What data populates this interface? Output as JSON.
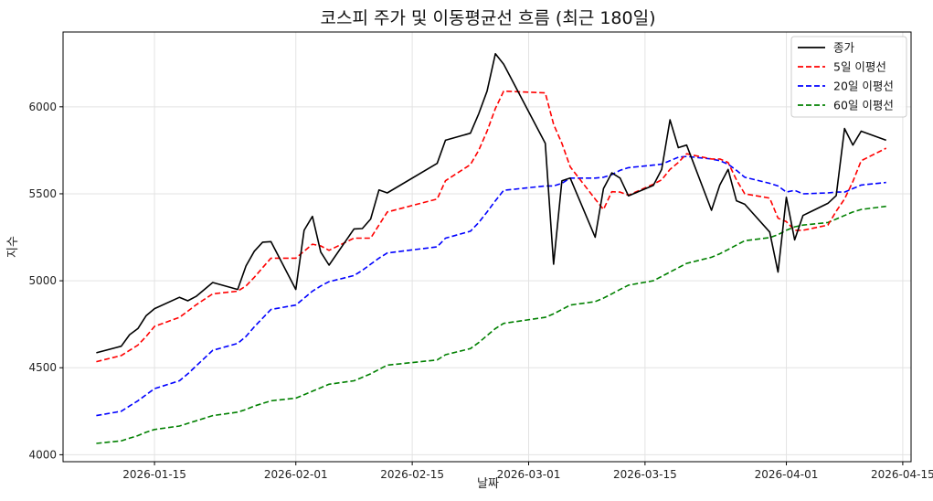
{
  "chart_data": {
    "type": "line",
    "title": "코스피 주가 및 이동평균선 흐름 (최근 180일)",
    "xlabel": "날짜",
    "ylabel": "지수",
    "xlim": [
      "2026-01-04",
      "2026-04-16"
    ],
    "ylim": [
      3960,
      6430
    ],
    "x_ticks": [
      "2026-01-15",
      "2026-02-01",
      "2026-02-15",
      "2026-03-01",
      "2026-03-15",
      "2026-04-01",
      "2026-04-15"
    ],
    "y_ticks": [
      4000,
      4500,
      5000,
      5500,
      6000
    ],
    "grid": true,
    "legend_position": "top-right",
    "series": [
      {
        "name": "종가",
        "color": "#000000",
        "dash": "solid",
        "points": [
          [
            "2026-01-08",
            4586
          ],
          [
            "2026-01-11",
            4624
          ],
          [
            "2026-01-12",
            4690
          ],
          [
            "2026-01-13",
            4725
          ],
          [
            "2026-01-14",
            4800
          ],
          [
            "2026-01-15",
            4840
          ],
          [
            "2026-01-18",
            4905
          ],
          [
            "2026-01-19",
            4885
          ],
          [
            "2026-01-20",
            4910
          ],
          [
            "2026-01-22",
            4990
          ],
          [
            "2026-01-25",
            4950
          ],
          [
            "2026-01-26",
            5085
          ],
          [
            "2026-01-27",
            5170
          ],
          [
            "2026-01-28",
            5222
          ],
          [
            "2026-01-29",
            5225
          ],
          [
            "2026-02-01",
            4950
          ],
          [
            "2026-02-02",
            5290
          ],
          [
            "2026-02-03",
            5370
          ],
          [
            "2026-02-04",
            5165
          ],
          [
            "2026-02-05",
            5090
          ],
          [
            "2026-02-08",
            5298
          ],
          [
            "2026-02-09",
            5300
          ],
          [
            "2026-02-10",
            5355
          ],
          [
            "2026-02-11",
            5522
          ],
          [
            "2026-02-12",
            5505
          ],
          [
            "2026-02-18",
            5675
          ],
          [
            "2026-02-19",
            5808
          ],
          [
            "2026-02-22",
            5848
          ],
          [
            "2026-02-23",
            5960
          ],
          [
            "2026-02-24",
            6090
          ],
          [
            "2026-02-25",
            6305
          ],
          [
            "2026-02-26",
            6245
          ],
          [
            "2026-03-03",
            5790
          ],
          [
            "2026-03-04",
            5095
          ],
          [
            "2026-03-05",
            5575
          ],
          [
            "2026-03-06",
            5590
          ],
          [
            "2026-03-09",
            5250
          ],
          [
            "2026-03-10",
            5530
          ],
          [
            "2026-03-11",
            5620
          ],
          [
            "2026-03-12",
            5590
          ],
          [
            "2026-03-13",
            5488
          ],
          [
            "2026-03-16",
            5548
          ],
          [
            "2026-03-17",
            5640
          ],
          [
            "2026-03-18",
            5925
          ],
          [
            "2026-03-19",
            5765
          ],
          [
            "2026-03-20",
            5780
          ],
          [
            "2026-03-23",
            5405
          ],
          [
            "2026-03-24",
            5550
          ],
          [
            "2026-03-25",
            5640
          ],
          [
            "2026-03-26",
            5460
          ],
          [
            "2026-03-27",
            5440
          ],
          [
            "2026-03-30",
            5280
          ],
          [
            "2026-03-31",
            5050
          ],
          [
            "2026-04-01",
            5480
          ],
          [
            "2026-04-02",
            5235
          ],
          [
            "2026-04-03",
            5375
          ],
          [
            "2026-04-06",
            5445
          ],
          [
            "2026-04-07",
            5490
          ],
          [
            "2026-04-08",
            5875
          ],
          [
            "2026-04-09",
            5780
          ],
          [
            "2026-04-10",
            5860
          ],
          [
            "2026-04-13",
            5808
          ]
        ]
      },
      {
        "name": "5일 이평선",
        "color": "#ff0000",
        "dash": "dashed",
        "points": [
          [
            "2026-01-08",
            4535
          ],
          [
            "2026-01-11",
            4570
          ],
          [
            "2026-01-12",
            4600
          ],
          [
            "2026-01-13",
            4630
          ],
          [
            "2026-01-14",
            4680
          ],
          [
            "2026-01-15",
            4738
          ],
          [
            "2026-01-18",
            4790
          ],
          [
            "2026-01-19",
            4825
          ],
          [
            "2026-01-20",
            4862
          ],
          [
            "2026-01-22",
            4925
          ],
          [
            "2026-01-25",
            4940
          ],
          [
            "2026-01-26",
            4970
          ],
          [
            "2026-01-27",
            5020
          ],
          [
            "2026-01-28",
            5075
          ],
          [
            "2026-01-29",
            5130
          ],
          [
            "2026-02-01",
            5130
          ],
          [
            "2026-02-02",
            5170
          ],
          [
            "2026-02-03",
            5210
          ],
          [
            "2026-02-04",
            5200
          ],
          [
            "2026-02-05",
            5175
          ],
          [
            "2026-02-08",
            5245
          ],
          [
            "2026-02-09",
            5245
          ],
          [
            "2026-02-10",
            5245
          ],
          [
            "2026-02-11",
            5320
          ],
          [
            "2026-02-12",
            5395
          ],
          [
            "2026-02-18",
            5470
          ],
          [
            "2026-02-19",
            5575
          ],
          [
            "2026-02-22",
            5668
          ],
          [
            "2026-02-23",
            5750
          ],
          [
            "2026-02-24",
            5860
          ],
          [
            "2026-02-25",
            5990
          ],
          [
            "2026-02-26",
            6090
          ],
          [
            "2026-03-03",
            6080
          ],
          [
            "2026-03-04",
            5900
          ],
          [
            "2026-03-05",
            5790
          ],
          [
            "2026-03-06",
            5655
          ],
          [
            "2026-03-09",
            5470
          ],
          [
            "2026-03-10",
            5410
          ],
          [
            "2026-03-11",
            5512
          ],
          [
            "2026-03-12",
            5510
          ],
          [
            "2026-03-13",
            5492
          ],
          [
            "2026-03-16",
            5555
          ],
          [
            "2026-03-17",
            5580
          ],
          [
            "2026-03-18",
            5640
          ],
          [
            "2026-03-19",
            5680
          ],
          [
            "2026-03-20",
            5730
          ],
          [
            "2026-03-23",
            5700
          ],
          [
            "2026-03-24",
            5700
          ],
          [
            "2026-03-25",
            5680
          ],
          [
            "2026-03-26",
            5580
          ],
          [
            "2026-03-27",
            5500
          ],
          [
            "2026-03-30",
            5475
          ],
          [
            "2026-03-31",
            5360
          ],
          [
            "2026-04-01",
            5340
          ],
          [
            "2026-04-02",
            5290
          ],
          [
            "2026-04-03",
            5290
          ],
          [
            "2026-04-06",
            5320
          ],
          [
            "2026-04-07",
            5400
          ],
          [
            "2026-04-08",
            5470
          ],
          [
            "2026-04-09",
            5570
          ],
          [
            "2026-04-10",
            5690
          ],
          [
            "2026-04-13",
            5762
          ]
        ]
      },
      {
        "name": "20일 이평선",
        "color": "#0000ff",
        "dash": "dashed",
        "points": [
          [
            "2026-01-08",
            4225
          ],
          [
            "2026-01-11",
            4250
          ],
          [
            "2026-01-12",
            4280
          ],
          [
            "2026-01-13",
            4310
          ],
          [
            "2026-01-14",
            4345
          ],
          [
            "2026-01-15",
            4380
          ],
          [
            "2026-01-18",
            4425
          ],
          [
            "2026-01-19",
            4465
          ],
          [
            "2026-01-20",
            4510
          ],
          [
            "2026-01-22",
            4600
          ],
          [
            "2026-01-25",
            4640
          ],
          [
            "2026-01-26",
            4680
          ],
          [
            "2026-01-27",
            4735
          ],
          [
            "2026-01-28",
            4785
          ],
          [
            "2026-01-29",
            4835
          ],
          [
            "2026-02-01",
            4860
          ],
          [
            "2026-02-02",
            4900
          ],
          [
            "2026-02-03",
            4940
          ],
          [
            "2026-02-04",
            4970
          ],
          [
            "2026-02-05",
            4995
          ],
          [
            "2026-02-08",
            5030
          ],
          [
            "2026-02-09",
            5060
          ],
          [
            "2026-02-10",
            5095
          ],
          [
            "2026-02-11",
            5130
          ],
          [
            "2026-02-12",
            5160
          ],
          [
            "2026-02-18",
            5195
          ],
          [
            "2026-02-19",
            5245
          ],
          [
            "2026-02-22",
            5285
          ],
          [
            "2026-02-23",
            5335
          ],
          [
            "2026-02-24",
            5395
          ],
          [
            "2026-02-25",
            5460
          ],
          [
            "2026-02-26",
            5520
          ],
          [
            "2026-03-03",
            5545
          ],
          [
            "2026-03-04",
            5545
          ],
          [
            "2026-03-05",
            5560
          ],
          [
            "2026-03-06",
            5590
          ],
          [
            "2026-03-09",
            5590
          ],
          [
            "2026-03-10",
            5595
          ],
          [
            "2026-03-11",
            5610
          ],
          [
            "2026-03-12",
            5635
          ],
          [
            "2026-03-13",
            5650
          ],
          [
            "2026-03-16",
            5665
          ],
          [
            "2026-03-17",
            5670
          ],
          [
            "2026-03-18",
            5690
          ],
          [
            "2026-03-19",
            5710
          ],
          [
            "2026-03-20",
            5715
          ],
          [
            "2026-03-23",
            5700
          ],
          [
            "2026-03-24",
            5690
          ],
          [
            "2026-03-25",
            5670
          ],
          [
            "2026-03-26",
            5635
          ],
          [
            "2026-03-27",
            5595
          ],
          [
            "2026-03-30",
            5560
          ],
          [
            "2026-03-31",
            5545
          ],
          [
            "2026-04-01",
            5510
          ],
          [
            "2026-04-02",
            5520
          ],
          [
            "2026-04-03",
            5500
          ],
          [
            "2026-04-06",
            5505
          ],
          [
            "2026-04-07",
            5510
          ],
          [
            "2026-04-08",
            5510
          ],
          [
            "2026-04-09",
            5530
          ],
          [
            "2026-04-10",
            5550
          ],
          [
            "2026-04-13",
            5565
          ]
        ]
      },
      {
        "name": "60일 이평선",
        "color": "#008000",
        "dash": "dashed",
        "points": [
          [
            "2026-01-08",
            4065
          ],
          [
            "2026-01-11",
            4080
          ],
          [
            "2026-01-12",
            4095
          ],
          [
            "2026-01-13",
            4110
          ],
          [
            "2026-01-14",
            4130
          ],
          [
            "2026-01-15",
            4145
          ],
          [
            "2026-01-18",
            4165
          ],
          [
            "2026-01-19",
            4180
          ],
          [
            "2026-01-20",
            4195
          ],
          [
            "2026-01-22",
            4225
          ],
          [
            "2026-01-25",
            4245
          ],
          [
            "2026-01-26",
            4260
          ],
          [
            "2026-01-27",
            4280
          ],
          [
            "2026-01-28",
            4295
          ],
          [
            "2026-01-29",
            4310
          ],
          [
            "2026-02-01",
            4325
          ],
          [
            "2026-02-02",
            4345
          ],
          [
            "2026-02-03",
            4365
          ],
          [
            "2026-02-04",
            4385
          ],
          [
            "2026-02-05",
            4405
          ],
          [
            "2026-02-08",
            4425
          ],
          [
            "2026-02-09",
            4445
          ],
          [
            "2026-02-10",
            4465
          ],
          [
            "2026-02-11",
            4490
          ],
          [
            "2026-02-12",
            4515
          ],
          [
            "2026-02-18",
            4545
          ],
          [
            "2026-02-19",
            4575
          ],
          [
            "2026-02-22",
            4610
          ],
          [
            "2026-02-23",
            4645
          ],
          [
            "2026-02-24",
            4685
          ],
          [
            "2026-02-25",
            4725
          ],
          [
            "2026-02-26",
            4755
          ],
          [
            "2026-03-03",
            4790
          ],
          [
            "2026-03-04",
            4810
          ],
          [
            "2026-03-05",
            4835
          ],
          [
            "2026-03-06",
            4860
          ],
          [
            "2026-03-09",
            4880
          ],
          [
            "2026-03-10",
            4900
          ],
          [
            "2026-03-11",
            4925
          ],
          [
            "2026-03-12",
            4950
          ],
          [
            "2026-03-13",
            4975
          ],
          [
            "2026-03-16",
            5000
          ],
          [
            "2026-03-17",
            5025
          ],
          [
            "2026-03-18",
            5050
          ],
          [
            "2026-03-19",
            5075
          ],
          [
            "2026-03-20",
            5100
          ],
          [
            "2026-03-23",
            5135
          ],
          [
            "2026-03-24",
            5155
          ],
          [
            "2026-03-25",
            5180
          ],
          [
            "2026-03-26",
            5205
          ],
          [
            "2026-03-27",
            5230
          ],
          [
            "2026-03-30",
            5248
          ],
          [
            "2026-03-31",
            5265
          ],
          [
            "2026-04-01",
            5290
          ],
          [
            "2026-04-02",
            5310
          ],
          [
            "2026-04-03",
            5320
          ],
          [
            "2026-04-06",
            5335
          ],
          [
            "2026-04-07",
            5355
          ],
          [
            "2026-04-08",
            5375
          ],
          [
            "2026-04-09",
            5395
          ],
          [
            "2026-04-10",
            5410
          ],
          [
            "2026-04-13",
            5428
          ]
        ]
      }
    ]
  }
}
